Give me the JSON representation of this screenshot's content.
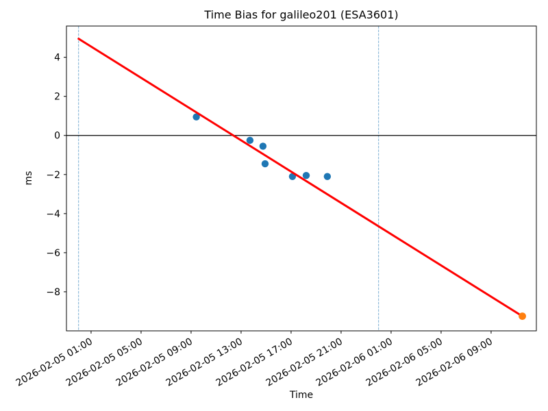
{
  "chart_data": {
    "type": "scatter",
    "title": "Time Bias for galileo201 (ESA3601)",
    "xlabel": "Time",
    "ylabel": "ms",
    "grid": false,
    "legend": null,
    "x_unit": "hours since 2026-02-05 00:00",
    "xlim_hours": [
      -0.97,
      36.62
    ],
    "ylim": [
      -10.0,
      5.6
    ],
    "x_ticks": [
      {
        "hour": 1,
        "label": "2026-02-05 01:00"
      },
      {
        "hour": 5,
        "label": "2026-02-05 05:00"
      },
      {
        "hour": 9,
        "label": "2026-02-05 09:00"
      },
      {
        "hour": 13,
        "label": "2026-02-05 13:00"
      },
      {
        "hour": 17,
        "label": "2026-02-05 17:00"
      },
      {
        "hour": 21,
        "label": "2026-02-05 21:00"
      },
      {
        "hour": 25,
        "label": "2026-02-06 01:00"
      },
      {
        "hour": 29,
        "label": "2026-02-06 05:00"
      },
      {
        "hour": 33,
        "label": "2026-02-06 09:00"
      }
    ],
    "y_ticks": [
      {
        "value": 4,
        "label": "4"
      },
      {
        "value": 2,
        "label": "2"
      },
      {
        "value": 0,
        "label": "0"
      },
      {
        "value": -2,
        "label": "−2"
      },
      {
        "value": -4,
        "label": "−4"
      },
      {
        "value": -6,
        "label": "−6"
      },
      {
        "value": -8,
        "label": "−8"
      }
    ],
    "series": [
      {
        "name": "measurements",
        "kind": "scatter",
        "color": "#1f77b4",
        "marker": "circle",
        "marker_radius": 5.2,
        "points": [
          {
            "time": "2026-02-05 09:25",
            "hour": 9.42,
            "ms": 0.95
          },
          {
            "time": "2026-02-05 13:43",
            "hour": 13.71,
            "ms": -0.25
          },
          {
            "time": "2026-02-05 14:45",
            "hour": 14.75,
            "ms": -0.55
          },
          {
            "time": "2026-02-05 14:55",
            "hour": 14.92,
            "ms": -1.45
          },
          {
            "time": "2026-02-05 17:07",
            "hour": 17.11,
            "ms": -2.1
          },
          {
            "time": "2026-02-05 18:13",
            "hour": 18.21,
            "ms": -2.05
          },
          {
            "time": "2026-02-05 19:54",
            "hour": 19.9,
            "ms": -2.1
          }
        ]
      },
      {
        "name": "prediction",
        "kind": "scatter",
        "color": "#ff7f0e",
        "marker": "circle",
        "marker_radius": 5.4,
        "points": [
          {
            "time": "2026-02-06 11:30",
            "hour": 35.5,
            "ms": -9.25
          }
        ]
      },
      {
        "name": "linear-fit",
        "kind": "line",
        "color": "#ff0000",
        "width": 3,
        "points": [
          {
            "time": "2026-02-05 00:00",
            "hour": 0,
            "ms": 4.95
          },
          {
            "time": "2026-02-06 11:30",
            "hour": 35.5,
            "ms": -9.25
          }
        ]
      }
    ],
    "reference_lines": {
      "horizontal": [
        {
          "ms": 0,
          "color": "#000000",
          "style": "solid",
          "width": 1.2
        }
      ],
      "vertical": [
        {
          "hour": 0,
          "time": "2026-02-05 00:00",
          "color": "#79add2",
          "style": "dashed",
          "width": 1
        },
        {
          "hour": 24,
          "time": "2026-02-06 00:00",
          "color": "#79add2",
          "style": "dashed",
          "width": 1
        }
      ]
    },
    "axis_color": "#000000"
  }
}
